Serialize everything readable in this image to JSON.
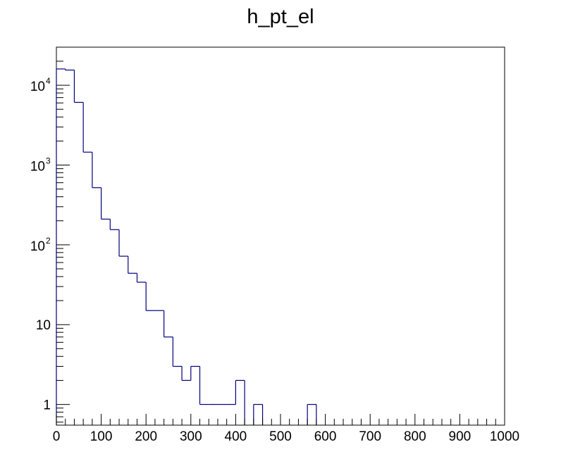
{
  "chart_data": {
    "type": "histogram",
    "title": "h_pt_el",
    "xlabel": "",
    "ylabel": "",
    "xlim": [
      0,
      1000
    ],
    "ylim": [
      0.55,
      30000
    ],
    "yscale": "log",
    "grid": false,
    "line_color": "#00007f",
    "bin_width": 20,
    "bins": [
      {
        "x0": 0,
        "x1": 20,
        "y": 16000
      },
      {
        "x0": 20,
        "x1": 40,
        "y": 15500
      },
      {
        "x0": 40,
        "x1": 60,
        "y": 6100
      },
      {
        "x0": 60,
        "x1": 80,
        "y": 1450
      },
      {
        "x0": 80,
        "x1": 100,
        "y": 520
      },
      {
        "x0": 100,
        "x1": 120,
        "y": 210
      },
      {
        "x0": 120,
        "x1": 140,
        "y": 155
      },
      {
        "x0": 140,
        "x1": 160,
        "y": 72
      },
      {
        "x0": 160,
        "x1": 180,
        "y": 44
      },
      {
        "x0": 180,
        "x1": 200,
        "y": 34
      },
      {
        "x0": 200,
        "x1": 220,
        "y": 15
      },
      {
        "x0": 220,
        "x1": 240,
        "y": 15
      },
      {
        "x0": 240,
        "x1": 260,
        "y": 7
      },
      {
        "x0": 260,
        "x1": 280,
        "y": 3
      },
      {
        "x0": 280,
        "x1": 300,
        "y": 2
      },
      {
        "x0": 300,
        "x1": 320,
        "y": 3
      },
      {
        "x0": 320,
        "x1": 340,
        "y": 1
      },
      {
        "x0": 340,
        "x1": 360,
        "y": 1
      },
      {
        "x0": 360,
        "x1": 380,
        "y": 1
      },
      {
        "x0": 380,
        "x1": 400,
        "y": 1
      },
      {
        "x0": 400,
        "x1": 420,
        "y": 2
      },
      {
        "x0": 420,
        "x1": 440,
        "y": 0
      },
      {
        "x0": 440,
        "x1": 460,
        "y": 1
      },
      {
        "x0": 460,
        "x1": 480,
        "y": 0
      },
      {
        "x0": 480,
        "x1": 500,
        "y": 0
      },
      {
        "x0": 500,
        "x1": 520,
        "y": 0
      },
      {
        "x0": 520,
        "x1": 540,
        "y": 0
      },
      {
        "x0": 540,
        "x1": 560,
        "y": 0
      },
      {
        "x0": 560,
        "x1": 580,
        "y": 1
      },
      {
        "x0": 580,
        "x1": 600,
        "y": 0
      }
    ],
    "x_ticks": [
      "0",
      "100",
      "200",
      "300",
      "400",
      "500",
      "600",
      "700",
      "800",
      "900",
      "1000"
    ],
    "y_ticks": [
      {
        "value": 1,
        "base": "1",
        "exp": ""
      },
      {
        "value": 10,
        "base": "10",
        "exp": ""
      },
      {
        "value": 100,
        "base": "10",
        "exp": "2"
      },
      {
        "value": 1000,
        "base": "10",
        "exp": "3"
      },
      {
        "value": 10000,
        "base": "10",
        "exp": "4"
      }
    ]
  }
}
